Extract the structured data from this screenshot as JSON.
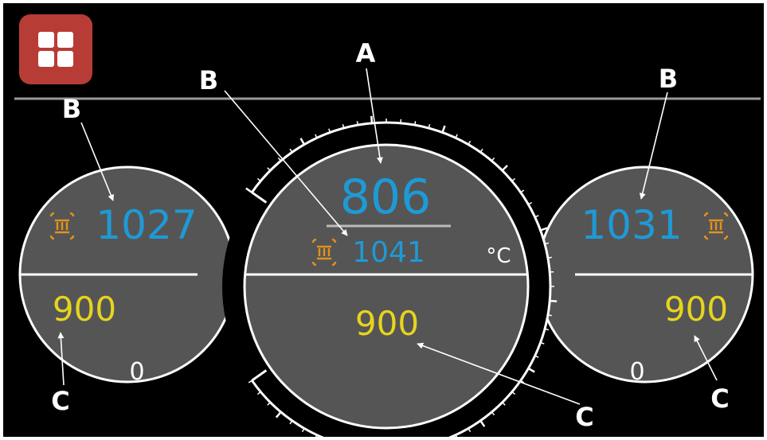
{
  "menu": {
    "icon": "grid-menu-icon",
    "color": "#b83c36"
  },
  "gauges": {
    "left": {
      "value_blue": "1027",
      "value_yellow": "900",
      "small_value": "0",
      "icon": "heater-coil-icon"
    },
    "center": {
      "value_main": "806",
      "value_blue": "1041",
      "unit": "°C",
      "value_yellow": "900",
      "icon": "heater-coil-icon"
    },
    "right": {
      "value_blue": "1031",
      "value_yellow": "900",
      "small_value": "0",
      "icon": "heater-coil-icon"
    }
  },
  "callouts": {
    "a": "A",
    "b": "B",
    "c": "C"
  },
  "colors": {
    "blue": "#1e9ad6",
    "yellow": "#e6d41e",
    "orange": "#e0921c",
    "gauge_fill": "#555555"
  }
}
